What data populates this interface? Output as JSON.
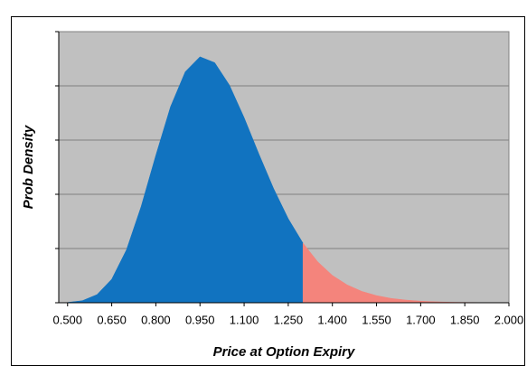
{
  "chart_data": {
    "type": "area",
    "xlabel": "Price at Option Expiry",
    "ylabel": "Prob Density",
    "series": [
      {
        "color": "#1173c0",
        "x": [
          0.5,
          0.55,
          0.6,
          0.65,
          0.7,
          0.75,
          0.8,
          0.85,
          0.9,
          0.95,
          1.0,
          1.05,
          1.1,
          1.15,
          1.2,
          1.25,
          1.3
        ],
        "values": [
          0.003,
          0.019,
          0.075,
          0.217,
          0.487,
          0.887,
          1.36,
          1.808,
          2.13,
          2.268,
          2.214,
          2.007,
          1.707,
          1.373,
          1.054,
          0.775,
          0.55
        ]
      },
      {
        "color": "#f4847c",
        "x": [
          1.3,
          1.35,
          1.4,
          1.45,
          1.5,
          1.55,
          1.6,
          1.65,
          1.7,
          1.75,
          1.8,
          1.85,
          1.9,
          1.95,
          2.0
        ],
        "values": [
          0.55,
          0.378,
          0.252,
          0.165,
          0.105,
          0.066,
          0.04,
          0.025,
          0.015,
          0.009,
          0.005,
          0.003,
          0.002,
          0.001,
          0.0006
        ]
      }
    ],
    "xlim": [
      0.47,
      2.0
    ],
    "xticks": [
      {
        "value": 0.5,
        "label": "0.500"
      },
      {
        "value": 0.65,
        "label": "0.650"
      },
      {
        "value": 0.8,
        "label": "0.800"
      },
      {
        "value": 0.95,
        "label": "0.950"
      },
      {
        "value": 1.1,
        "label": "1.100"
      },
      {
        "value": 1.25,
        "label": "1.250"
      },
      {
        "value": 1.4,
        "label": "1.400"
      },
      {
        "value": 1.55,
        "label": "1.550"
      },
      {
        "value": 1.7,
        "label": "1.700"
      },
      {
        "value": 1.85,
        "label": "1.850"
      },
      {
        "value": 2.0,
        "label": "2.000"
      }
    ],
    "ylim": [
      0,
      2.5
    ],
    "yticks": [
      0,
      0.5,
      1,
      1.5,
      2,
      2.5
    ],
    "grid": true
  }
}
